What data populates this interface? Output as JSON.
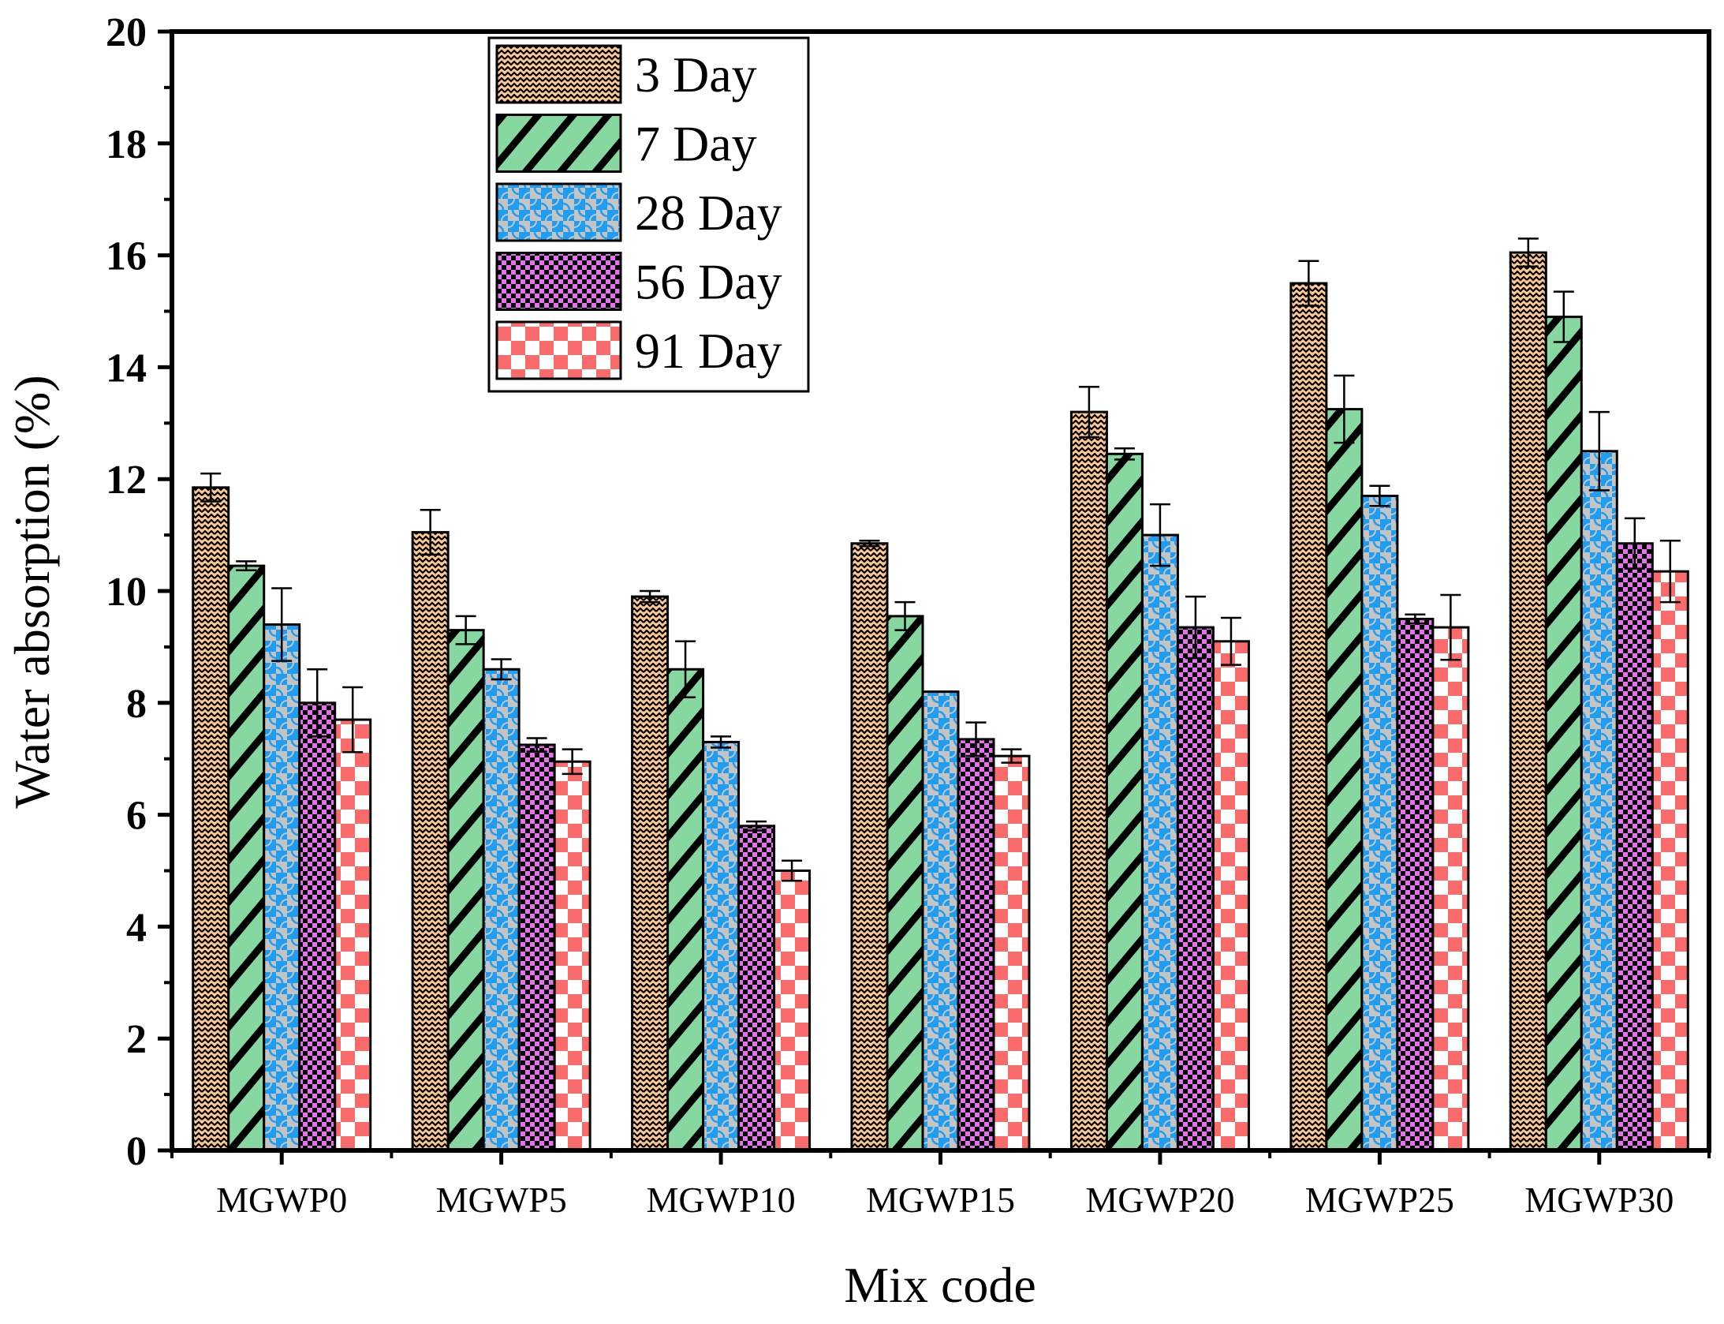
{
  "chart_data": {
    "type": "bar",
    "title": "",
    "xlabel": "Mix code",
    "ylabel": "Water absorption (%)",
    "ylim": [
      0,
      20
    ],
    "yticks": [
      "0",
      "2",
      "4",
      "6",
      "8",
      "10",
      "12",
      "14",
      "16",
      "18",
      "20"
    ],
    "grid": false,
    "legend_position": "top-left",
    "categories": [
      "MGWP0",
      "MGWP5",
      "MGWP10",
      "MGWP15",
      "MGWP20",
      "MGWP25",
      "MGWP30"
    ],
    "series": [
      {
        "name": "3 Day",
        "color": "#fbc894",
        "pattern": "wavy",
        "values": [
          11.85,
          11.05,
          9.9,
          10.85,
          13.2,
          15.5,
          16.05
        ],
        "errors": [
          0.25,
          0.4,
          0.1,
          0.05,
          0.45,
          0.4,
          0.25
        ]
      },
      {
        "name": "7 Day",
        "color": "#86d8a0",
        "pattern": "diagonal",
        "values": [
          10.45,
          9.3,
          8.6,
          9.55,
          12.45,
          13.25,
          14.9
        ],
        "errors": [
          0.08,
          0.25,
          0.5,
          0.25,
          0.1,
          0.6,
          0.45
        ]
      },
      {
        "name": "28 Day",
        "color": "#c4c4c4",
        "pattern": "circles",
        "values": [
          9.4,
          8.6,
          7.3,
          8.2,
          11.0,
          11.7,
          12.5
        ],
        "errors": [
          0.65,
          0.18,
          0.1,
          0.0,
          0.55,
          0.18,
          0.7
        ]
      },
      {
        "name": "56 Day",
        "color": "#e870f0",
        "pattern": "checker-dark",
        "values": [
          8.0,
          7.25,
          5.8,
          7.35,
          9.35,
          9.5,
          10.85
        ],
        "errors": [
          0.6,
          0.12,
          0.08,
          0.3,
          0.55,
          0.08,
          0.45
        ]
      },
      {
        "name": "91 Day",
        "color": "#fa6b6b",
        "pattern": "checker-light",
        "values": [
          7.7,
          6.95,
          5.0,
          7.05,
          9.1,
          9.35,
          10.35
        ],
        "errors": [
          0.58,
          0.22,
          0.18,
          0.12,
          0.42,
          0.58,
          0.55
        ]
      }
    ]
  }
}
